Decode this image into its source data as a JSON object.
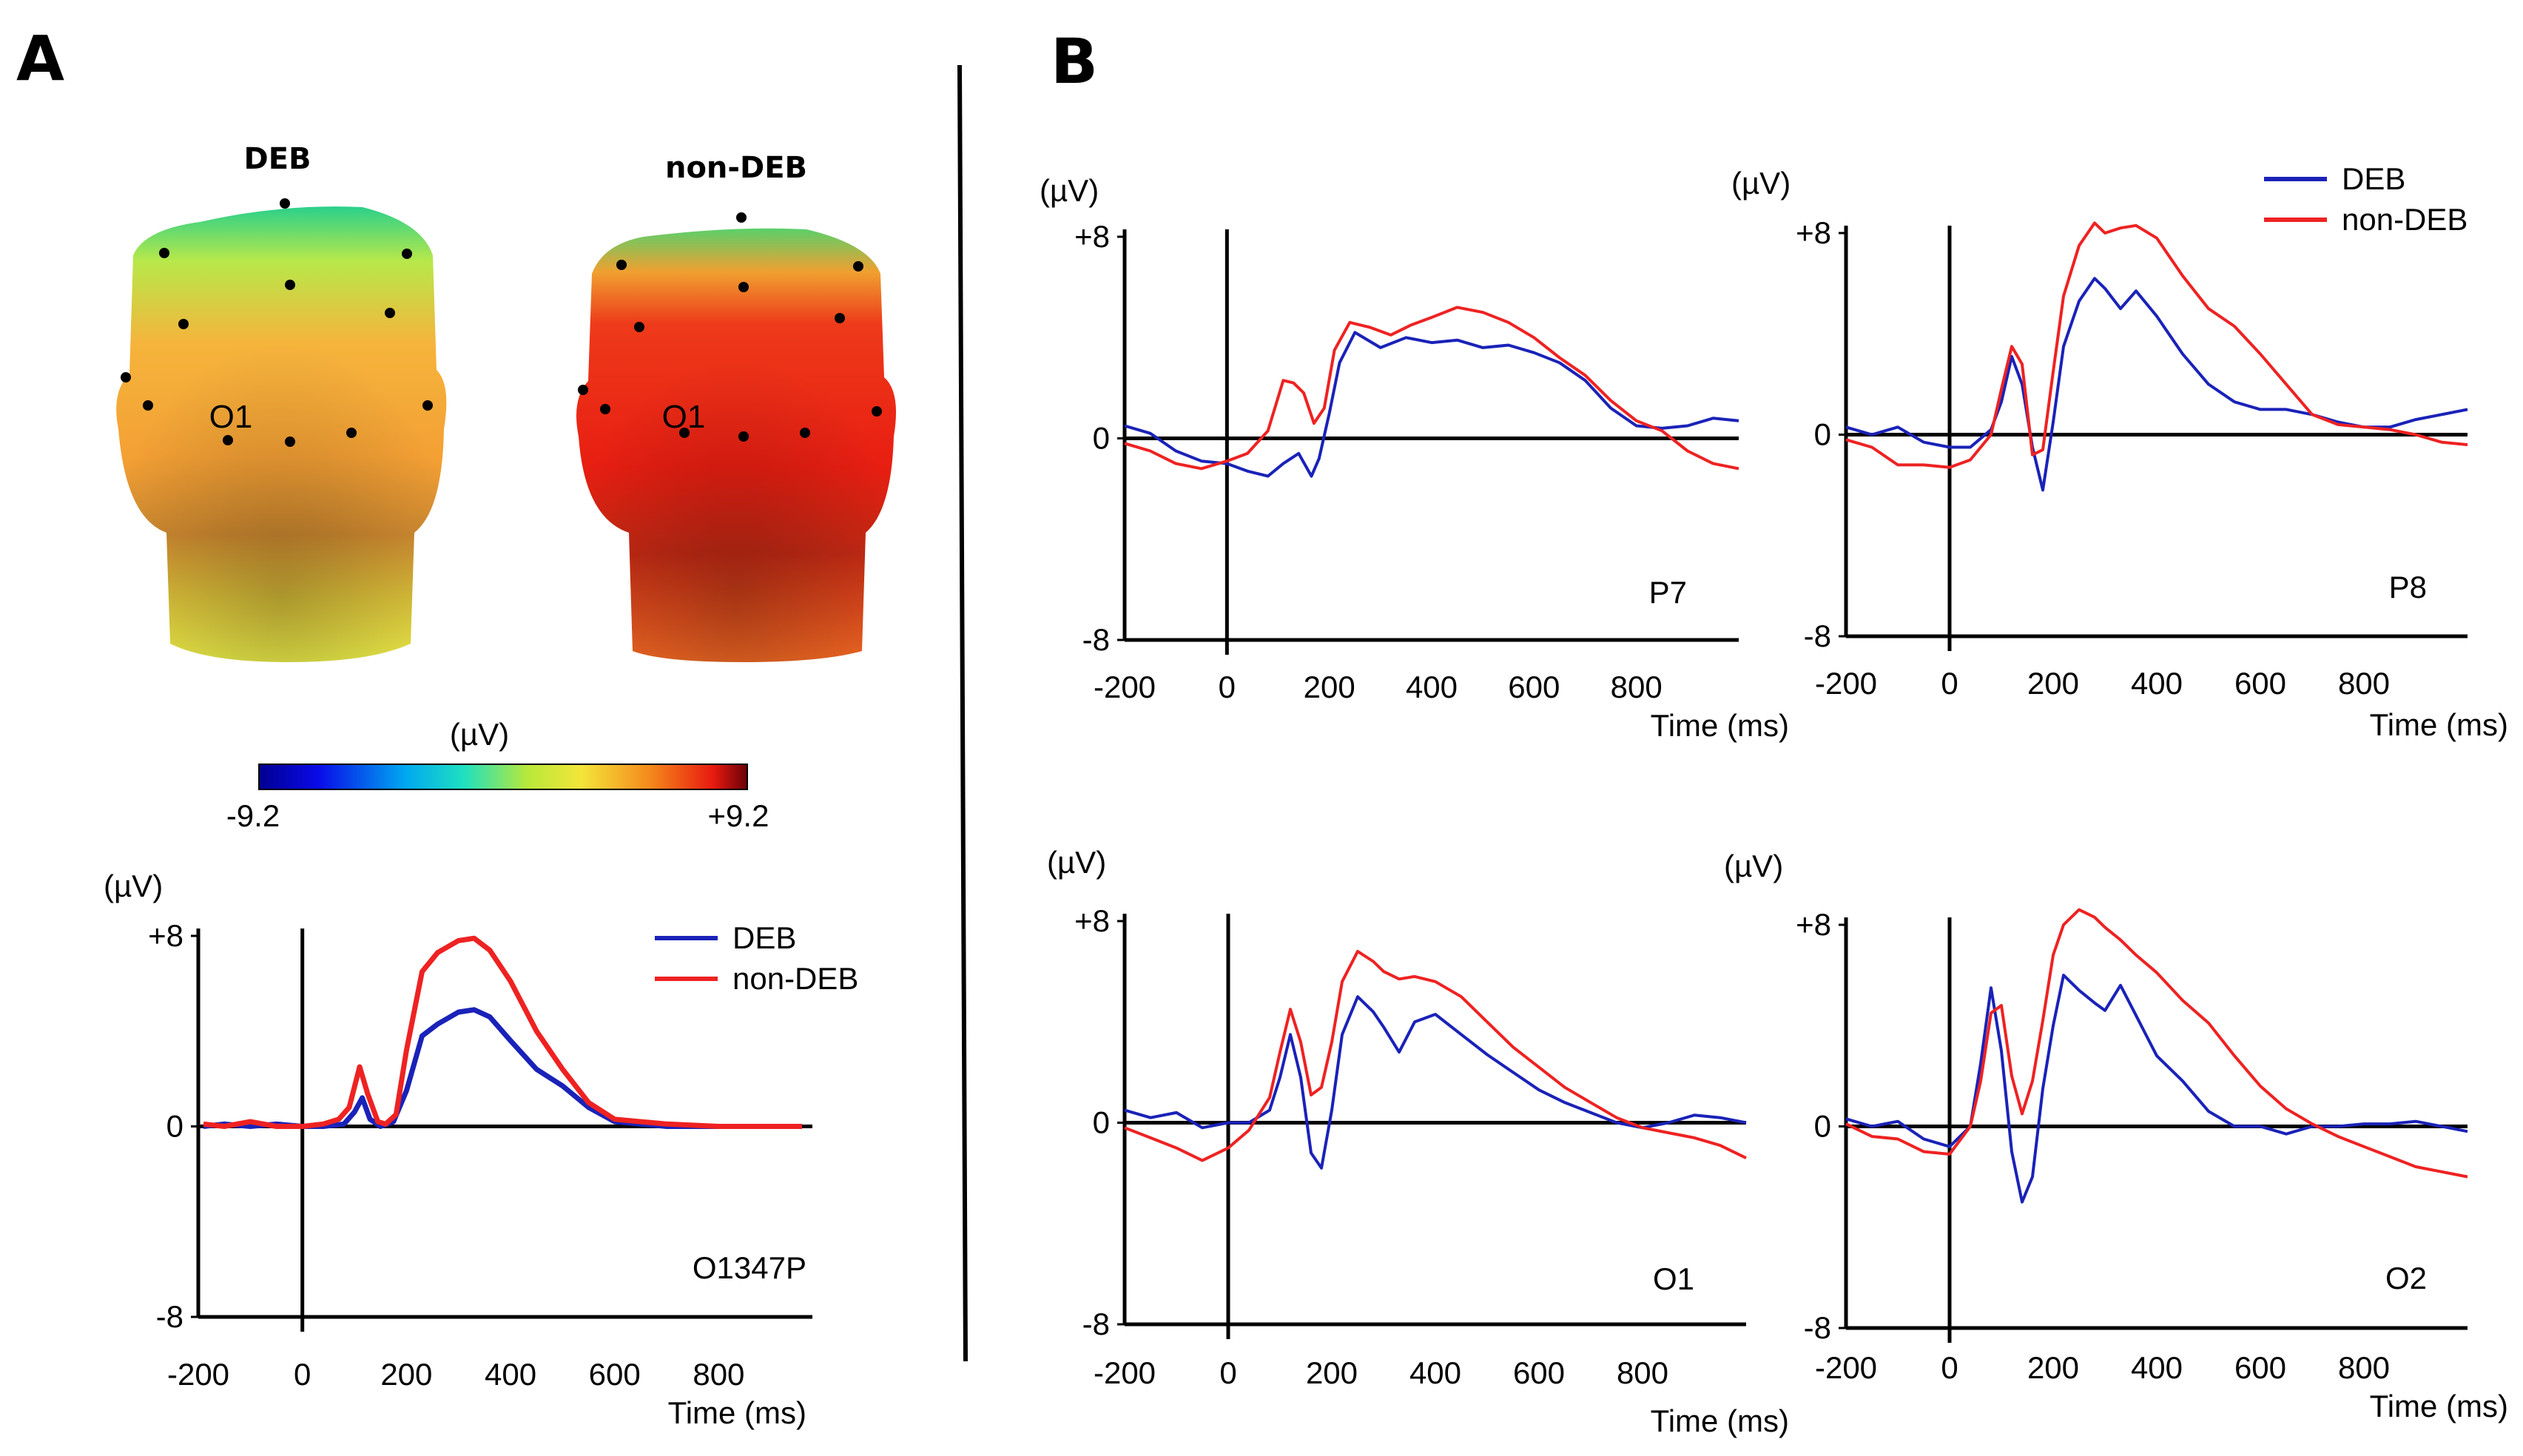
{
  "panels": {
    "a": "A",
    "b": "B"
  },
  "colors": {
    "deb": "#1a22b8",
    "non_deb": "#ee2222",
    "axis": "#000000"
  },
  "topomap": {
    "heads": [
      {
        "title": "DEB",
        "electrode_label": "O1"
      },
      {
        "title": "non-DEB",
        "electrode_label": "O1"
      }
    ],
    "colorbar": {
      "unit": "(µV)",
      "min_label": "-9.2",
      "max_label": "+9.2"
    }
  },
  "chart_data": [
    {
      "id": "A-O1347P",
      "type": "line",
      "panel": "A",
      "label": "O1347P",
      "ylabel": "(µV)",
      "xlabel": "Time (ms)",
      "xlim": [
        -200,
        980
      ],
      "ylim": [
        -8,
        8
      ],
      "xticks": [
        -200,
        0,
        200,
        400,
        600,
        800
      ],
      "xtick_labels": [
        "-200",
        "0",
        "200",
        "400",
        "600",
        "800"
      ],
      "yticks": [
        8,
        0,
        -8
      ],
      "ytick_labels": [
        "+8",
        "0",
        "-8"
      ],
      "legend": [
        "DEB",
        "non-DEB"
      ],
      "legend_position": "top-right",
      "thick": true,
      "series": [
        {
          "name": "DEB",
          "color": "#1a22b8",
          "x": [
            -190,
            -150,
            -100,
            -50,
            0,
            40,
            80,
            100,
            115,
            130,
            150,
            175,
            200,
            230,
            260,
            300,
            330,
            360,
            400,
            450,
            500,
            550,
            600,
            650,
            700,
            800,
            900,
            960
          ],
          "y": [
            0,
            0.1,
            0,
            0.1,
            0,
            0,
            0.1,
            0.6,
            1.2,
            0.3,
            0,
            0.2,
            1.5,
            3.8,
            4.3,
            4.8,
            4.9,
            4.6,
            3.6,
            2.4,
            1.7,
            0.8,
            0.2,
            0.1,
            0,
            0,
            0,
            0
          ]
        },
        {
          "name": "non-DEB",
          "color": "#ee2222",
          "x": [
            -190,
            -150,
            -100,
            -50,
            0,
            40,
            70,
            90,
            110,
            125,
            145,
            160,
            180,
            200,
            230,
            260,
            300,
            330,
            360,
            400,
            450,
            500,
            550,
            600,
            650,
            700,
            800,
            900,
            960
          ],
          "y": [
            0.1,
            0,
            0.2,
            0,
            0,
            0.1,
            0.3,
            0.8,
            2.5,
            1.4,
            0.2,
            0.1,
            0.5,
            3.2,
            6.5,
            7.3,
            7.8,
            7.9,
            7.4,
            6.1,
            4.0,
            2.4,
            1.0,
            0.3,
            0.2,
            0.1,
            0,
            0,
            0
          ]
        }
      ]
    },
    {
      "id": "B-P7",
      "type": "line",
      "panel": "B",
      "label": "P7",
      "ylabel": "(µV)",
      "xlabel": "Time (ms)",
      "xlim": [
        -200,
        1000
      ],
      "ylim": [
        -8,
        8
      ],
      "xticks": [
        -200,
        0,
        200,
        400,
        600,
        800
      ],
      "xtick_labels": [
        "-200",
        "0",
        "200",
        "400",
        "600",
        "800"
      ],
      "yticks": [
        8,
        0,
        -8
      ],
      "ytick_labels": [
        "+8",
        "0",
        "-8"
      ],
      "legend": [],
      "legend_position": "none",
      "thick": false,
      "series": [
        {
          "name": "DEB",
          "color": "#1a22b8",
          "x": [
            -200,
            -150,
            -100,
            -50,
            0,
            40,
            80,
            110,
            140,
            165,
            180,
            200,
            220,
            250,
            300,
            350,
            400,
            450,
            500,
            550,
            600,
            650,
            700,
            750,
            800,
            850,
            900,
            950,
            1000
          ],
          "y": [
            0.5,
            0.2,
            -0.5,
            -0.9,
            -1.0,
            -1.3,
            -1.5,
            -1.0,
            -0.6,
            -1.5,
            -0.8,
            1.0,
            3.0,
            4.2,
            3.6,
            4.0,
            3.8,
            3.9,
            3.6,
            3.7,
            3.4,
            3.0,
            2.3,
            1.2,
            0.5,
            0.4,
            0.5,
            0.8,
            0.7
          ]
        },
        {
          "name": "non-DEB",
          "color": "#ee2222",
          "x": [
            -200,
            -150,
            -100,
            -50,
            0,
            40,
            80,
            110,
            130,
            150,
            170,
            190,
            210,
            240,
            280,
            320,
            360,
            400,
            450,
            500,
            550,
            600,
            650,
            700,
            750,
            800,
            850,
            900,
            950,
            1000
          ],
          "y": [
            -0.2,
            -0.5,
            -1.0,
            -1.2,
            -0.9,
            -0.6,
            0.3,
            2.3,
            2.2,
            1.8,
            0.6,
            1.2,
            3.5,
            4.6,
            4.4,
            4.1,
            4.5,
            4.8,
            5.2,
            5.0,
            4.6,
            4.0,
            3.2,
            2.5,
            1.5,
            0.7,
            0.3,
            -0.5,
            -1.0,
            -1.2
          ]
        }
      ]
    },
    {
      "id": "B-P8",
      "type": "line",
      "panel": "B",
      "label": "P8",
      "ylabel": "(µV)",
      "xlabel": "Time (ms)",
      "xlim": [
        -200,
        1000
      ],
      "ylim": [
        -8,
        8
      ],
      "xticks": [
        -200,
        0,
        200,
        400,
        600,
        800
      ],
      "xtick_labels": [
        "-200",
        "0",
        "200",
        "400",
        "600",
        "800"
      ],
      "yticks": [
        8,
        0,
        -8
      ],
      "ytick_labels": [
        "+8",
        "0",
        "-8"
      ],
      "legend": [
        "DEB",
        "non-DEB"
      ],
      "legend_position": "top-right",
      "thick": false,
      "series": [
        {
          "name": "DEB",
          "color": "#1a22b8",
          "x": [
            -200,
            -150,
            -100,
            -50,
            0,
            40,
            80,
            100,
            120,
            140,
            160,
            180,
            200,
            220,
            250,
            280,
            300,
            330,
            360,
            400,
            450,
            500,
            550,
            600,
            650,
            700,
            750,
            800,
            850,
            900,
            950,
            1000
          ],
          "y": [
            0.3,
            0,
            0.3,
            -0.3,
            -0.5,
            -0.5,
            0.2,
            1.3,
            3.1,
            2.0,
            -0.5,
            -2.2,
            0.5,
            3.5,
            5.3,
            6.2,
            5.8,
            5.0,
            5.7,
            4.7,
            3.2,
            2.0,
            1.3,
            1.0,
            1.0,
            0.8,
            0.5,
            0.3,
            0.3,
            0.6,
            0.8,
            1.0
          ]
        },
        {
          "name": "non-DEB",
          "color": "#ee2222",
          "x": [
            -200,
            -150,
            -100,
            -50,
            0,
            40,
            80,
            100,
            120,
            140,
            160,
            180,
            200,
            220,
            250,
            280,
            300,
            330,
            360,
            400,
            450,
            500,
            550,
            600,
            650,
            700,
            750,
            800,
            850,
            900,
            950,
            1000
          ],
          "y": [
            -0.2,
            -0.5,
            -1.2,
            -1.2,
            -1.3,
            -1.0,
            0,
            1.8,
            3.5,
            2.8,
            -0.8,
            -0.6,
            2.5,
            5.5,
            7.5,
            8.4,
            8.0,
            8.2,
            8.3,
            7.8,
            6.3,
            5.0,
            4.3,
            3.2,
            2.0,
            0.8,
            0.4,
            0.3,
            0.2,
            0,
            -0.3,
            -0.4
          ]
        }
      ]
    },
    {
      "id": "B-O1",
      "type": "line",
      "panel": "B",
      "label": "O1",
      "ylabel": "(µV)",
      "xlabel": "Time (ms)",
      "xlim": [
        -200,
        1000
      ],
      "ylim": [
        -8,
        8
      ],
      "xticks": [
        -200,
        0,
        200,
        400,
        600,
        800
      ],
      "xtick_labels": [
        "-200",
        "0",
        "200",
        "400",
        "600",
        "800"
      ],
      "yticks": [
        8,
        0,
        -8
      ],
      "ytick_labels": [
        "+8",
        "0",
        "-8"
      ],
      "legend": [],
      "legend_position": "none",
      "thick": false,
      "series": [
        {
          "name": "DEB",
          "color": "#1a22b8",
          "x": [
            -200,
            -150,
            -100,
            -50,
            0,
            40,
            80,
            100,
            120,
            140,
            160,
            180,
            200,
            220,
            250,
            280,
            300,
            330,
            360,
            400,
            450,
            500,
            550,
            600,
            650,
            700,
            750,
            800,
            850,
            900,
            950,
            1000
          ],
          "y": [
            0.5,
            0.2,
            0.4,
            -0.2,
            0,
            0,
            0.5,
            1.8,
            3.5,
            1.8,
            -1.2,
            -1.8,
            0.5,
            3.5,
            5.0,
            4.4,
            3.8,
            2.8,
            4.0,
            4.3,
            3.5,
            2.7,
            2.0,
            1.3,
            0.8,
            0.4,
            0,
            -0.2,
            0,
            0.3,
            0.2,
            0
          ]
        },
        {
          "name": "non-DEB",
          "color": "#ee2222",
          "x": [
            -200,
            -150,
            -100,
            -50,
            0,
            40,
            80,
            100,
            120,
            140,
            160,
            180,
            200,
            220,
            250,
            280,
            300,
            330,
            360,
            400,
            450,
            500,
            550,
            600,
            650,
            700,
            750,
            800,
            850,
            900,
            950,
            1000
          ],
          "y": [
            -0.2,
            -0.6,
            -1.0,
            -1.5,
            -1.0,
            -0.3,
            1.0,
            2.8,
            4.5,
            3.2,
            1.1,
            1.4,
            3.2,
            5.6,
            6.8,
            6.4,
            6.0,
            5.7,
            5.8,
            5.6,
            5.0,
            4.0,
            3.0,
            2.2,
            1.4,
            0.8,
            0.2,
            -0.2,
            -0.4,
            -0.6,
            -0.9,
            -1.4
          ]
        }
      ]
    },
    {
      "id": "B-O2",
      "type": "line",
      "panel": "B",
      "label": "O2",
      "ylabel": "(µV)",
      "xlabel": "Time (ms)",
      "xlim": [
        -200,
        1000
      ],
      "ylim": [
        -8,
        8
      ],
      "xticks": [
        -200,
        0,
        200,
        400,
        600,
        800
      ],
      "xtick_labels": [
        "-200",
        "0",
        "200",
        "400",
        "600",
        "800"
      ],
      "yticks": [
        8,
        0,
        -8
      ],
      "ytick_labels": [
        "+8",
        "0",
        "-8"
      ],
      "legend": [],
      "legend_position": "none",
      "thick": false,
      "series": [
        {
          "name": "DEB",
          "color": "#1a22b8",
          "x": [
            -200,
            -150,
            -100,
            -50,
            0,
            40,
            60,
            80,
            100,
            120,
            140,
            160,
            180,
            200,
            220,
            250,
            280,
            300,
            330,
            360,
            400,
            450,
            500,
            550,
            600,
            650,
            700,
            750,
            800,
            850,
            900,
            950,
            1000
          ],
          "y": [
            0.3,
            0,
            0.2,
            -0.5,
            -0.8,
            0,
            2.5,
            5.5,
            3.0,
            -1.0,
            -3.0,
            -2.0,
            1.5,
            4.0,
            6.0,
            5.4,
            4.9,
            4.6,
            5.6,
            4.4,
            2.8,
            1.8,
            0.6,
            0,
            0,
            -0.3,
            0,
            0,
            0.1,
            0.1,
            0.2,
            0,
            -0.2
          ]
        },
        {
          "name": "non-DEB",
          "color": "#ee2222",
          "x": [
            -200,
            -150,
            -100,
            -50,
            0,
            40,
            60,
            80,
            100,
            120,
            140,
            160,
            180,
            200,
            220,
            250,
            280,
            300,
            330,
            360,
            400,
            450,
            500,
            550,
            600,
            650,
            700,
            750,
            800,
            850,
            900,
            950,
            1000
          ],
          "y": [
            0.1,
            -0.4,
            -0.5,
            -1.0,
            -1.1,
            0,
            1.8,
            4.5,
            4.8,
            2.0,
            0.5,
            1.8,
            4.2,
            6.8,
            8.0,
            8.6,
            8.3,
            7.9,
            7.4,
            6.8,
            6.1,
            5.0,
            4.1,
            2.8,
            1.6,
            0.7,
            0.1,
            -0.4,
            -0.8,
            -1.2,
            -1.6,
            -1.8,
            -2.0
          ]
        }
      ]
    }
  ]
}
